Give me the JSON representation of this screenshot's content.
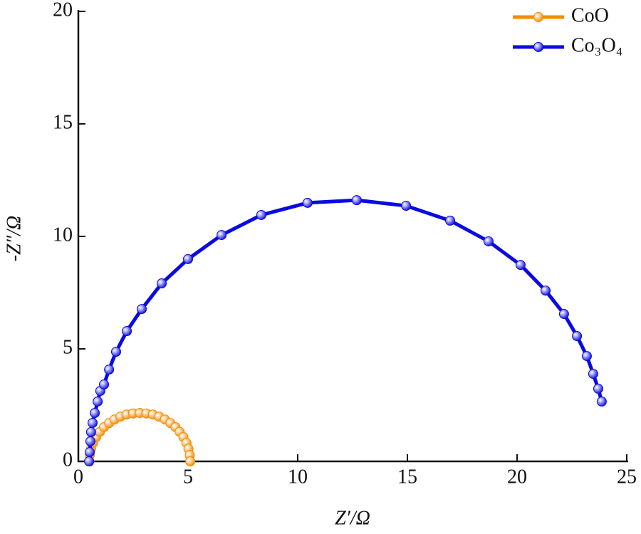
{
  "chart_data": {
    "type": "line",
    "xlabel": "Z′/Ω",
    "ylabel": "-Z″/Ω",
    "xlim": [
      0,
      25
    ],
    "xticks": [
      0,
      5,
      10,
      15,
      20,
      25
    ],
    "ylim": [
      0,
      20
    ],
    "yticks": [
      0,
      5,
      10,
      15,
      20
    ],
    "legend": "upper right",
    "series": [
      {
        "name": "CoO",
        "color": "#f28c00",
        "x": [
          0.5,
          0.52,
          0.58,
          0.67,
          0.81,
          0.98,
          1.17,
          1.4,
          1.65,
          1.92,
          2.2,
          2.5,
          2.8,
          3.1,
          3.4,
          3.68,
          3.95,
          4.2,
          4.43,
          4.62,
          4.79,
          4.93,
          5.02,
          5.08,
          5.1
        ],
        "values": [
          0,
          0.28,
          0.56,
          0.82,
          1.08,
          1.31,
          1.52,
          1.7,
          1.86,
          1.99,
          2.08,
          2.13,
          2.15,
          2.13,
          2.08,
          1.99,
          1.86,
          1.7,
          1.52,
          1.31,
          1.08,
          0.82,
          0.56,
          0.28,
          0
        ]
      },
      {
        "name": "Co₃O₄",
        "color": "#0a0ae0",
        "x": [
          0.49,
          0.52,
          0.55,
          0.58,
          0.65,
          0.75,
          0.88,
          1.0,
          1.17,
          1.4,
          1.72,
          2.21,
          2.89,
          3.8,
          5.0,
          6.53,
          8.34,
          10.45,
          12.69,
          14.94,
          16.95,
          18.7,
          20.16,
          21.3,
          22.14,
          22.73,
          23.18,
          23.47,
          23.7,
          23.86
        ],
        "values": [
          0,
          0.41,
          0.89,
          1.3,
          1.71,
          2.15,
          2.66,
          3.13,
          3.42,
          4.08,
          4.87,
          5.79,
          6.77,
          7.91,
          8.99,
          10.06,
          10.95,
          11.49,
          11.61,
          11.36,
          10.7,
          9.78,
          8.73,
          7.59,
          6.55,
          5.57,
          4.68,
          3.89,
          3.23,
          2.66
        ]
      }
    ]
  }
}
